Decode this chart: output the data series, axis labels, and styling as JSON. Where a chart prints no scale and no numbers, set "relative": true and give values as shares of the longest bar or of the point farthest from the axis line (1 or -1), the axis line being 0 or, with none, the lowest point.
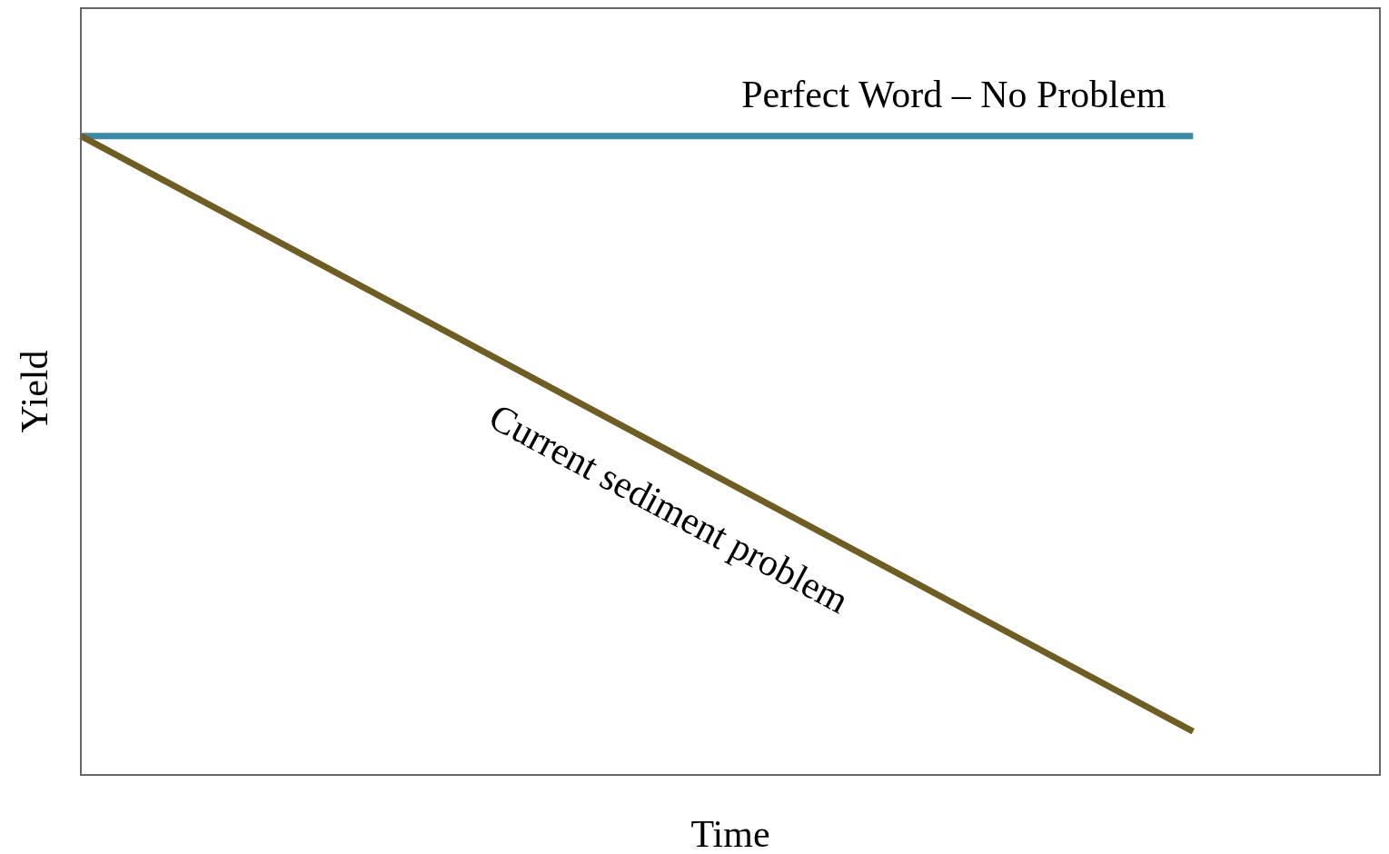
{
  "chart_data": {
    "type": "line",
    "xlabel": "Time",
    "ylabel": "Yield",
    "relative": true,
    "categories": [
      null,
      null
    ],
    "legend": false,
    "marker": "none",
    "line_style": "solid",
    "series": [
      {
        "name": "Perfect Word – No Problem",
        "color": "#3a8aa5",
        "values": [
          1,
          1
        ]
      },
      {
        "name": "Current sediment problem",
        "color": "#6e5e24",
        "values": [
          1,
          0.068
        ]
      }
    ]
  }
}
